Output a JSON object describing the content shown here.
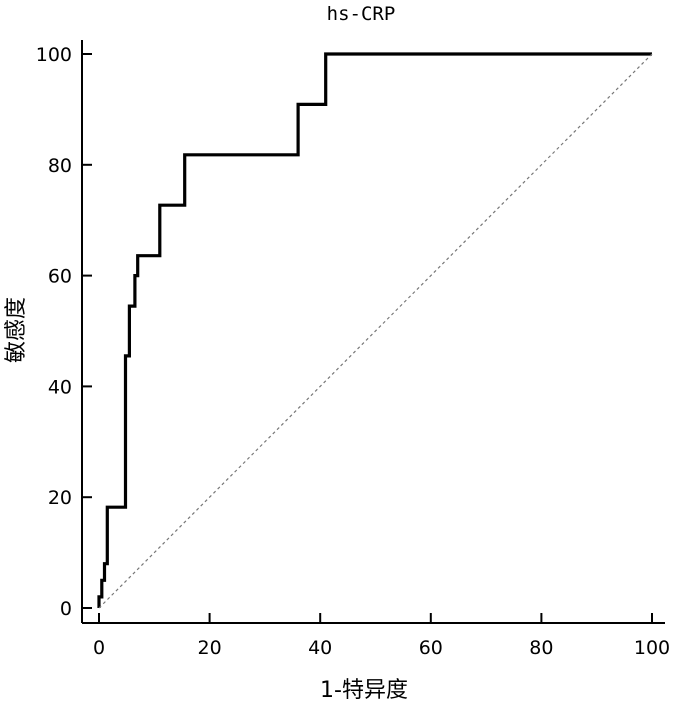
{
  "chart_data": {
    "type": "line",
    "title": "hs-CRP",
    "xlabel": "1-特异度",
    "ylabel": "敏感度",
    "xlim": [
      0,
      100
    ],
    "ylim": [
      0,
      100
    ],
    "xticks": [
      0,
      20,
      40,
      60,
      80,
      100
    ],
    "yticks": [
      0,
      20,
      40,
      60,
      80,
      100
    ],
    "grid": false,
    "series": [
      {
        "style": "solid",
        "color": "#000000",
        "x": [
          0,
          0,
          0.5,
          0.5,
          1,
          1,
          1.5,
          1.5,
          4.8,
          4.8,
          5.5,
          5.5,
          6.5,
          6.5,
          7,
          7,
          11,
          11,
          15.5,
          15.5,
          36,
          36,
          41,
          41,
          100
        ],
        "y": [
          0,
          2,
          2,
          5,
          5,
          8,
          8,
          18.2,
          18.2,
          45.5,
          45.5,
          54.5,
          54.5,
          60,
          60,
          63.6,
          63.6,
          72.7,
          72.7,
          81.8,
          81.8,
          90.9,
          90.9,
          100,
          100
        ]
      },
      {
        "style": "dotted",
        "color": "#777777",
        "x": [
          0,
          100
        ],
        "y": [
          0,
          100
        ]
      }
    ]
  }
}
